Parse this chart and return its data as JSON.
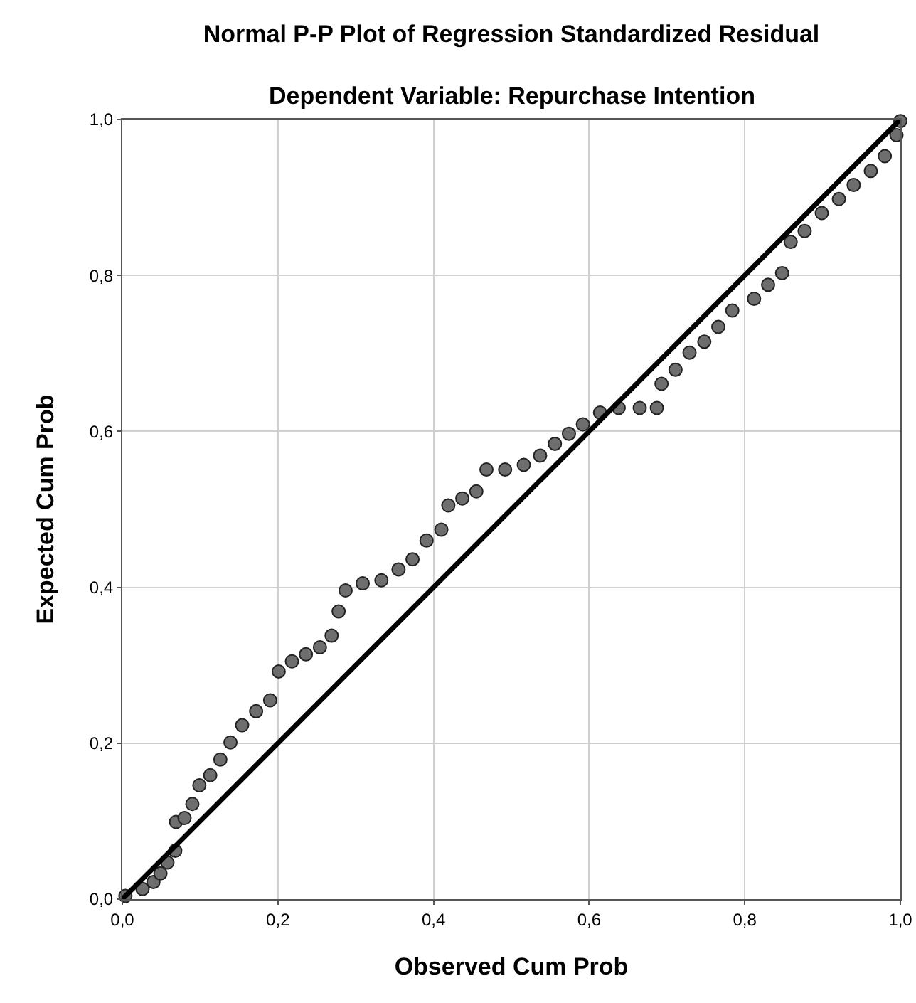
{
  "chart_data": {
    "type": "scatter",
    "title": "Normal P-P Plot of Regression Standardized Residual",
    "subtitle": "Dependent Variable: Repurchase Intention",
    "xlabel": "Observed Cum Prob",
    "ylabel": "Expected Cum Prob",
    "xlim": [
      0,
      1
    ],
    "ylim": [
      0,
      1
    ],
    "xticks": [
      {
        "value": 0,
        "label": "0,0"
      },
      {
        "value": 0.2,
        "label": "0,2"
      },
      {
        "value": 0.4,
        "label": "0,4"
      },
      {
        "value": 0.6,
        "label": "0,6"
      },
      {
        "value": 0.8,
        "label": "0,8"
      },
      {
        "value": 1,
        "label": "1,0"
      }
    ],
    "yticks": [
      {
        "value": 0,
        "label": "0,0"
      },
      {
        "value": 0.2,
        "label": "0,2"
      },
      {
        "value": 0.4,
        "label": "0,4"
      },
      {
        "value": 0.6,
        "label": "0,6"
      },
      {
        "value": 0.8,
        "label": "0,8"
      },
      {
        "value": 1,
        "label": "1,0"
      }
    ],
    "grid": true,
    "marker": "circle",
    "series": [
      {
        "color": "#6e6e6e",
        "x": [
          0.004,
          0.026,
          0.04,
          0.049,
          0.058,
          0.068,
          0.069,
          0.08,
          0.09,
          0.099,
          0.113,
          0.126,
          0.139,
          0.154,
          0.172,
          0.19,
          0.201,
          0.218,
          0.236,
          0.254,
          0.269,
          0.278,
          0.287,
          0.309,
          0.333,
          0.355,
          0.373,
          0.391,
          0.41,
          0.419,
          0.437,
          0.455,
          0.468,
          0.492,
          0.516,
          0.537,
          0.556,
          0.574,
          0.592,
          0.614,
          0.638,
          0.665,
          0.687,
          0.693,
          0.711,
          0.729,
          0.748,
          0.766,
          0.784,
          0.812,
          0.83,
          0.848,
          0.859,
          0.877,
          0.899,
          0.921,
          0.94,
          0.962,
          0.98,
          0.995,
          1.0
        ],
        "values": [
          0.004,
          0.013,
          0.022,
          0.033,
          0.047,
          0.062,
          0.099,
          0.104,
          0.122,
          0.146,
          0.159,
          0.179,
          0.201,
          0.223,
          0.241,
          0.255,
          0.292,
          0.305,
          0.314,
          0.323,
          0.338,
          0.369,
          0.396,
          0.405,
          0.409,
          0.423,
          0.436,
          0.46,
          0.474,
          0.505,
          0.514,
          0.523,
          0.551,
          0.551,
          0.557,
          0.569,
          0.584,
          0.597,
          0.609,
          0.624,
          0.63,
          0.63,
          0.63,
          0.661,
          0.679,
          0.701,
          0.715,
          0.734,
          0.755,
          0.77,
          0.788,
          0.803,
          0.843,
          0.857,
          0.88,
          0.898,
          0.916,
          0.934,
          0.953,
          0.98,
          0.998
        ]
      },
      {
        "type": "line",
        "marker": "none",
        "color": "#000000",
        "x": [
          0,
          1
        ],
        "values": [
          0,
          1
        ]
      }
    ]
  }
}
